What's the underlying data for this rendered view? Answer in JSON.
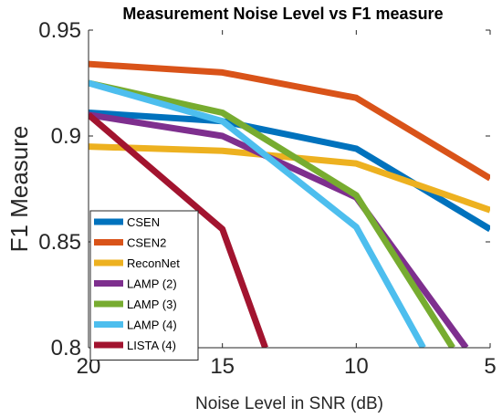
{
  "chart_data": {
    "type": "line",
    "title": "Measurement Noise Level vs F1 measure",
    "xlabel": "Noise Level in SNR (dB)",
    "ylabel": "F1 Measure",
    "xlim": [
      20,
      5
    ],
    "ylim": [
      0.8,
      0.95
    ],
    "x_reversed": true,
    "xticks": [
      "20",
      "15",
      "10",
      "5"
    ],
    "yticks": [
      "0.8",
      "0.85",
      "0.9",
      "0.95"
    ],
    "grid": false,
    "legend_position": "bottom-left",
    "series": [
      {
        "name": "CSEN",
        "color": "#0072BD",
        "points": [
          [
            20,
            0.911
          ],
          [
            15,
            0.907
          ],
          [
            10,
            0.894
          ],
          [
            5,
            0.856
          ]
        ]
      },
      {
        "name": "CSEN2",
        "color": "#D95319",
        "points": [
          [
            20,
            0.934
          ],
          [
            15,
            0.93
          ],
          [
            10,
            0.918
          ],
          [
            5,
            0.88
          ]
        ]
      },
      {
        "name": "ReconNet",
        "color": "#EDB120",
        "points": [
          [
            20,
            0.895
          ],
          [
            15,
            0.893
          ],
          [
            10,
            0.887
          ],
          [
            5,
            0.865
          ]
        ]
      },
      {
        "name": "LAMP (2)",
        "color": "#7E2F8E",
        "points": [
          [
            20,
            0.91
          ],
          [
            15,
            0.9
          ],
          [
            10,
            0.871
          ],
          [
            5.9,
            0.8
          ]
        ]
      },
      {
        "name": "LAMP (3)",
        "color": "#77AC30",
        "points": [
          [
            20,
            0.925
          ],
          [
            15,
            0.911
          ],
          [
            10,
            0.872
          ],
          [
            6.4,
            0.8
          ]
        ]
      },
      {
        "name": "LAMP (4)",
        "color": "#4DBEEE",
        "points": [
          [
            20,
            0.925
          ],
          [
            15,
            0.907
          ],
          [
            10,
            0.857
          ],
          [
            7.5,
            0.8
          ]
        ]
      },
      {
        "name": "LISTA (4)",
        "color": "#A2142F",
        "points": [
          [
            20,
            0.91
          ],
          [
            15,
            0.856
          ],
          [
            13.4,
            0.8
          ]
        ]
      }
    ]
  }
}
